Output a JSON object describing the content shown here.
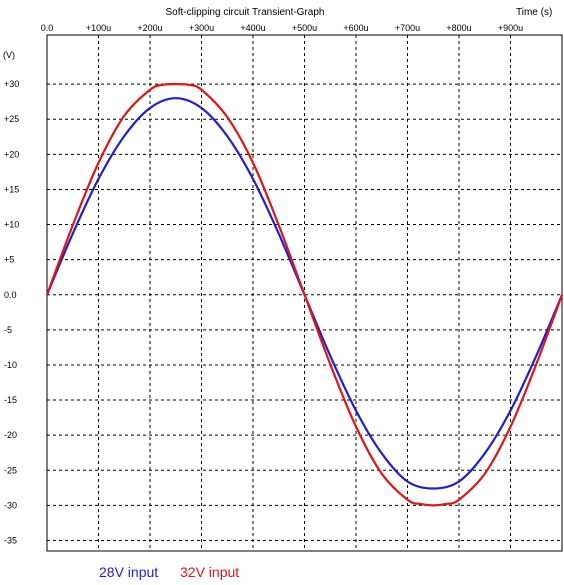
{
  "chart_data": {
    "type": "line",
    "title": "Soft-clipping circuit Transient-Graph",
    "xlabel": "Time  (s)",
    "ylabel": "(V)",
    "xlim": [
      0,
      1000
    ],
    "ylim": [
      -36.5,
      37
    ],
    "x_ticks": [
      {
        "value": 0,
        "label": "0.0"
      },
      {
        "value": 100,
        "label": "+100u"
      },
      {
        "value": 200,
        "label": "+200u"
      },
      {
        "value": 300,
        "label": "+300u"
      },
      {
        "value": 400,
        "label": "+400u"
      },
      {
        "value": 500,
        "label": "+500u"
      },
      {
        "value": 600,
        "label": "+600u"
      },
      {
        "value": 700,
        "label": "+700u"
      },
      {
        "value": 800,
        "label": "+800u"
      },
      {
        "value": 900,
        "label": "+900u"
      }
    ],
    "y_ticks": [
      {
        "value": 30,
        "label": "+30"
      },
      {
        "value": 25,
        "label": "+25"
      },
      {
        "value": 20,
        "label": "+20"
      },
      {
        "value": 15,
        "label": "+15"
      },
      {
        "value": 10,
        "label": "+10"
      },
      {
        "value": 5,
        "label": "+5"
      },
      {
        "value": 0,
        "label": "0.0"
      },
      {
        "value": -5,
        "label": "-5"
      },
      {
        "value": -10,
        "label": "-10"
      },
      {
        "value": -15,
        "label": "-15"
      },
      {
        "value": -20,
        "label": "-20"
      },
      {
        "value": -25,
        "label": "-25"
      },
      {
        "value": -30,
        "label": "-30"
      },
      {
        "value": -35,
        "label": "-35"
      }
    ],
    "grid": true,
    "legend_position": "bottom-left",
    "series": [
      {
        "name": "28V input",
        "color": "#1f1fcf",
        "x": [
          0,
          50,
          100,
          150,
          200,
          250,
          300,
          350,
          400,
          450,
          500,
          550,
          600,
          650,
          700,
          750,
          800,
          850,
          900,
          950,
          1000
        ],
        "y": [
          0,
          8.7,
          16.5,
          22.6,
          26.6,
          28.0,
          26.6,
          22.6,
          16.5,
          8.7,
          0,
          -8.7,
          -16.5,
          -22.6,
          -26.6,
          -27.6,
          -26.6,
          -22.6,
          -16.5,
          -8.7,
          0
        ]
      },
      {
        "name": "32V input",
        "color": "#e01515",
        "x": [
          0,
          50,
          100,
          150,
          200,
          225,
          250,
          275,
          300,
          350,
          400,
          450,
          500,
          550,
          600,
          650,
          700,
          725,
          750,
          775,
          800,
          850,
          900,
          950,
          1000
        ],
        "y": [
          0,
          9.9,
          18.8,
          25.5,
          29.2,
          29.9,
          30.0,
          29.9,
          29.2,
          25.3,
          18.8,
          9.9,
          0,
          -9.9,
          -18.8,
          -25.5,
          -29.2,
          -29.8,
          -30.0,
          -29.8,
          -29.2,
          -25.5,
          -18.8,
          -9.9,
          0
        ]
      }
    ]
  }
}
